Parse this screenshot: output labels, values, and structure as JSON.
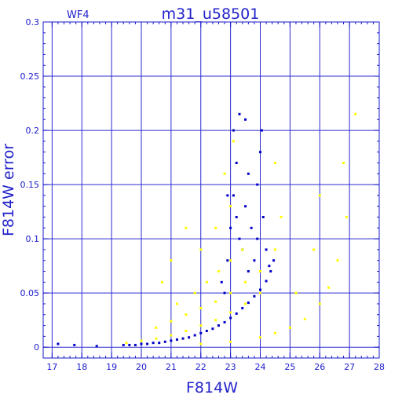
{
  "chart_data": {
    "type": "scatter",
    "title": "m31_u58501",
    "panel_label": "WF4",
    "xlabel": "F814W",
    "ylabel": "F814W error",
    "xlim": [
      16.7,
      28.0
    ],
    "ylim": [
      -0.01,
      0.3
    ],
    "grid": true,
    "x_major_ticks": [
      17,
      18,
      19,
      20,
      21,
      22,
      23,
      24,
      25,
      26,
      27,
      28
    ],
    "x_tick_labels": [
      "17",
      "18",
      "19",
      "20",
      "21",
      "22",
      "23",
      "24",
      "25",
      "26",
      "27",
      "28"
    ],
    "y_major_ticks": [
      0,
      0.05,
      0.1,
      0.15,
      0.2,
      0.25,
      0.3
    ],
    "y_tick_labels": [
      "0",
      "0.05",
      "0.1",
      "0.15",
      "0.2",
      "0.25",
      "0.3"
    ],
    "colors": {
      "axis": "#1a1acc",
      "grid": "#2b2bd0",
      "series_blue": "#0000c8",
      "series_yellow": "#ffff00"
    },
    "series": [
      {
        "color": "#0000c8",
        "points": [
          [
            17.2,
            0.003
          ],
          [
            17.75,
            0.002
          ],
          [
            18.5,
            0.001
          ],
          [
            19.4,
            0.002
          ],
          [
            19.6,
            0.002
          ],
          [
            19.8,
            0.002
          ],
          [
            20.0,
            0.003
          ],
          [
            20.2,
            0.003
          ],
          [
            20.4,
            0.004
          ],
          [
            20.6,
            0.004
          ],
          [
            20.8,
            0.005
          ],
          [
            21.0,
            0.006
          ],
          [
            21.2,
            0.007
          ],
          [
            21.4,
            0.008
          ],
          [
            21.6,
            0.009
          ],
          [
            21.8,
            0.011
          ],
          [
            22.0,
            0.013
          ],
          [
            22.2,
            0.015
          ],
          [
            22.4,
            0.017
          ],
          [
            22.6,
            0.02
          ],
          [
            22.8,
            0.023
          ],
          [
            23.0,
            0.027
          ],
          [
            23.2,
            0.031
          ],
          [
            23.4,
            0.036
          ],
          [
            23.6,
            0.041
          ],
          [
            23.8,
            0.047
          ],
          [
            24.0,
            0.053
          ],
          [
            24.2,
            0.061
          ],
          [
            24.35,
            0.07
          ],
          [
            24.45,
            0.08
          ],
          [
            22.8,
            0.05
          ],
          [
            22.9,
            0.08
          ],
          [
            23.0,
            0.11
          ],
          [
            23.1,
            0.14
          ],
          [
            23.2,
            0.12
          ],
          [
            23.3,
            0.1
          ],
          [
            23.4,
            0.09
          ],
          [
            23.5,
            0.13
          ],
          [
            23.6,
            0.16
          ],
          [
            23.7,
            0.11
          ],
          [
            23.8,
            0.08
          ],
          [
            23.9,
            0.15
          ],
          [
            24.0,
            0.18
          ],
          [
            24.05,
            0.2
          ],
          [
            24.1,
            0.12
          ],
          [
            23.1,
            0.2
          ],
          [
            23.3,
            0.215
          ],
          [
            23.5,
            0.21
          ],
          [
            23.2,
            0.17
          ],
          [
            22.9,
            0.14
          ],
          [
            24.2,
            0.09
          ],
          [
            24.3,
            0.075
          ],
          [
            23.6,
            0.07
          ],
          [
            23.9,
            0.1
          ],
          [
            22.7,
            0.06
          ]
        ]
      },
      {
        "color": "#ffff00",
        "points": [
          [
            19.5,
            0.004
          ],
          [
            20.0,
            0.006
          ],
          [
            20.5,
            0.008
          ],
          [
            21.0,
            0.011
          ],
          [
            21.5,
            0.015
          ],
          [
            22.0,
            0.02
          ],
          [
            22.5,
            0.025
          ],
          [
            23.0,
            0.032
          ],
          [
            23.5,
            0.04
          ],
          [
            24.0,
            0.05
          ],
          [
            20.5,
            0.018
          ],
          [
            21.0,
            0.024
          ],
          [
            21.5,
            0.03
          ],
          [
            22.0,
            0.036
          ],
          [
            22.5,
            0.042
          ],
          [
            23.0,
            0.05
          ],
          [
            23.5,
            0.06
          ],
          [
            24.0,
            0.07
          ],
          [
            21.2,
            0.04
          ],
          [
            21.8,
            0.05
          ],
          [
            22.2,
            0.06
          ],
          [
            22.6,
            0.07
          ],
          [
            23.0,
            0.08
          ],
          [
            23.4,
            0.09
          ],
          [
            22.0,
            0.09
          ],
          [
            22.5,
            0.11
          ],
          [
            23.0,
            0.13
          ],
          [
            22.8,
            0.16
          ],
          [
            23.1,
            0.19
          ],
          [
            21.5,
            0.11
          ],
          [
            21.0,
            0.08
          ],
          [
            20.7,
            0.06
          ],
          [
            24.5,
            0.09
          ],
          [
            24.5,
            0.17
          ],
          [
            24.7,
            0.12
          ],
          [
            22.0,
            0.003
          ],
          [
            23.0,
            0.005
          ],
          [
            24.0,
            0.009
          ],
          [
            24.5,
            0.013
          ],
          [
            25.0,
            0.018
          ],
          [
            25.5,
            0.026
          ],
          [
            26.0,
            0.04
          ],
          [
            26.3,
            0.055
          ],
          [
            26.6,
            0.08
          ],
          [
            26.9,
            0.12
          ],
          [
            26.8,
            0.17
          ],
          [
            27.2,
            0.215
          ],
          [
            26.0,
            0.14
          ],
          [
            25.8,
            0.09
          ],
          [
            25.2,
            0.05
          ]
        ]
      }
    ]
  }
}
